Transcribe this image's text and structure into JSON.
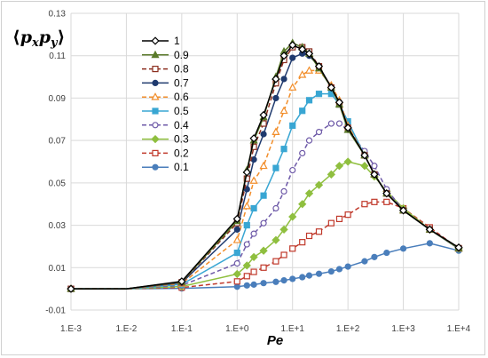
{
  "chart_data": {
    "type": "line",
    "title": "",
    "ylabel": {
      "open": "⟨",
      "p1": "p",
      "s1": "x",
      "p2": "p",
      "s2": "y",
      "close": "⟩"
    },
    "xlabel": "Pe",
    "x_scale": "log",
    "xlim": [
      0.001,
      10000
    ],
    "ylim": [
      -0.01,
      0.13
    ],
    "x_ticks": [
      "1.E-3",
      "1.E-2",
      "1.E-1",
      "1.E+0",
      "1.E+1",
      "1.E+2",
      "1.E+3",
      "1.E+4"
    ],
    "y_ticks": [
      "-0.01",
      "0.01",
      "0.03",
      "0.05",
      "0.07",
      "0.09",
      "0.11",
      "0.13"
    ],
    "grid": true,
    "legend_position": "top-left inside plot",
    "x": [
      0.001,
      0.01,
      0.1,
      1,
      1.5,
      2,
      3,
      5,
      7,
      10,
      15,
      20,
      30,
      50,
      70,
      100,
      200,
      300,
      500,
      1000,
      3000,
      10000
    ],
    "series": [
      {
        "name": "1",
        "color": "#000000",
        "marker": "diamond",
        "filled": false,
        "dashed": false,
        "values": [
          0,
          0,
          0.0035,
          0.033,
          0.055,
          0.071,
          0.082,
          0.099,
          0.11,
          0.115,
          0.113,
          0.111,
          0.105,
          0.095,
          0.088,
          0.076,
          0.063,
          0.054,
          0.045,
          0.037,
          0.028,
          0.0195
        ]
      },
      {
        "name": "0.9",
        "color": "#5a7a2a",
        "marker": "triangle",
        "filled": true,
        "dashed": false,
        "values": [
          0,
          0,
          0.0033,
          0.032,
          0.056,
          0.07,
          0.081,
          0.1,
          0.112,
          0.116,
          0.114,
          0.111,
          0.104,
          0.095,
          0.087,
          0.075,
          0.063,
          0.054,
          0.045,
          0.037,
          0.028,
          0.0192
        ]
      },
      {
        "name": "0.8",
        "color": "#8b2e1f",
        "marker": "square",
        "filled": false,
        "dashed": true,
        "values": [
          0,
          0,
          0.0031,
          0.031,
          0.052,
          0.067,
          0.078,
          0.097,
          0.108,
          0.114,
          0.114,
          0.112,
          0.105,
          0.095,
          0.087,
          0.076,
          0.063,
          0.054,
          0.045,
          0.037,
          0.028,
          0.0192
        ]
      },
      {
        "name": "0.7",
        "color": "#1f3a6e",
        "marker": "circle",
        "filled": true,
        "dashed": false,
        "values": [
          0,
          0,
          0.0029,
          0.028,
          0.047,
          0.061,
          0.073,
          0.09,
          0.099,
          0.109,
          0.111,
          0.11,
          0.105,
          0.095,
          0.088,
          0.076,
          0.063,
          0.054,
          0.045,
          0.037,
          0.028,
          0.019
        ]
      },
      {
        "name": "0.6",
        "color": "#f28e2b",
        "marker": "triangle",
        "filled": false,
        "dashed": true,
        "values": [
          0,
          0,
          0.0025,
          0.023,
          0.039,
          0.051,
          0.058,
          0.074,
          0.084,
          0.095,
          0.101,
          0.103,
          0.103,
          0.096,
          0.089,
          0.077,
          0.063,
          0.054,
          0.045,
          0.037,
          0.028,
          0.019
        ]
      },
      {
        "name": "0.5",
        "color": "#39a6d3",
        "marker": "square",
        "filled": true,
        "dashed": false,
        "values": [
          0,
          0,
          0.0021,
          0.017,
          0.03,
          0.038,
          0.044,
          0.057,
          0.066,
          0.077,
          0.084,
          0.089,
          0.092,
          0.092,
          0.087,
          0.079,
          0.063,
          0.054,
          0.045,
          0.037,
          0.028,
          0.019
        ]
      },
      {
        "name": "0.4",
        "color": "#6e5aa8",
        "marker": "circle",
        "filled": false,
        "dashed": true,
        "values": [
          0,
          0,
          0.0016,
          0.012,
          0.021,
          0.026,
          0.031,
          0.038,
          0.046,
          0.056,
          0.064,
          0.07,
          0.074,
          0.078,
          0.078,
          0.075,
          0.065,
          0.058,
          0.047,
          0.037,
          0.028,
          0.019
        ]
      },
      {
        "name": "0.3",
        "color": "#8fbf3f",
        "marker": "diamond",
        "filled": true,
        "dashed": false,
        "values": [
          0,
          0,
          0.0011,
          0.007,
          0.011,
          0.015,
          0.018,
          0.023,
          0.028,
          0.034,
          0.04,
          0.045,
          0.049,
          0.054,
          0.058,
          0.06,
          0.058,
          0.053,
          0.046,
          0.038,
          0.028,
          0.019
        ]
      },
      {
        "name": "0.2",
        "color": "#c0392b",
        "marker": "square",
        "filled": false,
        "dashed": true,
        "values": [
          0,
          0,
          0.0006,
          0.0035,
          0.006,
          0.008,
          0.01,
          0.013,
          0.016,
          0.019,
          0.022,
          0.025,
          0.027,
          0.031,
          0.033,
          0.035,
          0.04,
          0.041,
          0.041,
          0.038,
          0.029,
          0.019
        ]
      },
      {
        "name": "0.1",
        "color": "#4a7ebb",
        "marker": "circle",
        "filled": true,
        "dashed": false,
        "values": [
          0,
          0,
          0.0002,
          0.001,
          0.0016,
          0.002,
          0.0027,
          0.0033,
          0.004,
          0.0047,
          0.0055,
          0.0063,
          0.0071,
          0.0082,
          0.0093,
          0.0105,
          0.013,
          0.015,
          0.017,
          0.019,
          0.0215,
          0.018
        ]
      }
    ]
  }
}
